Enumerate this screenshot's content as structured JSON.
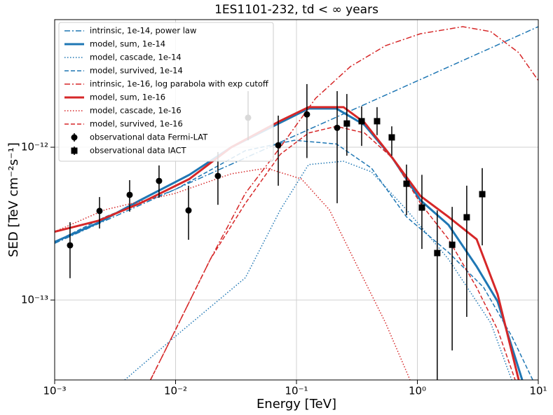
{
  "chart_data": {
    "type": "line",
    "title": "1ES1101-232, td < ∞ years",
    "xlabel": "Energy [TeV]",
    "ylabel": "SED [TeV cm⁻²s⁻¹]",
    "xscale": "log",
    "yscale": "log",
    "grid": true,
    "legend": "upper left",
    "xlim": [
      0.001,
      10
    ],
    "ylim": [
      3e-14,
      6.84e-12
    ],
    "xticks": [
      {
        "value": 0.001,
        "label": "10⁻³"
      },
      {
        "value": 0.01,
        "label": "10⁻²"
      },
      {
        "value": 0.1,
        "label": "10⁻¹"
      },
      {
        "value": 1,
        "label": "10⁰"
      },
      {
        "value": 10,
        "label": "10¹"
      }
    ],
    "yticks": [
      {
        "value": 1e-13,
        "label": "10⁻¹³"
      },
      {
        "value": 1e-12,
        "label": "10⁻¹²"
      }
    ],
    "series": [
      {
        "name": "intrinsic, 1e-14, power law",
        "type": "line",
        "color": "#1f77b4",
        "linestyle": "dashdot",
        "linewidth": 1.5,
        "x": [
          0.001,
          10
        ],
        "values": [
          2.35e-13,
          6.15e-12
        ]
      },
      {
        "name": "model, sum, 1e-14",
        "type": "line",
        "color": "#1f77b4",
        "linestyle": "solid",
        "linewidth": 3,
        "x": [
          0.001,
          0.00229,
          0.0051,
          0.013,
          0.0289,
          0.0736,
          0.126,
          0.214,
          0.365,
          0.622,
          1.06,
          1.81,
          3.09,
          4.61,
          7.36
        ],
        "values": [
          2.4e-13,
          3.2e-13,
          4.5e-13,
          6.6e-13,
          1e-12,
          1.45e-12,
          1.79e-12,
          1.79e-12,
          1.4e-12,
          8.5e-13,
          4.5e-13,
          3.1e-13,
          1.66e-13,
          9.8e-14,
          3e-14
        ]
      },
      {
        "name": "model, cascade, 1e-14",
        "type": "line",
        "color": "#1f77b4",
        "linestyle": "dotted",
        "linewidth": 1.5,
        "x": [
          0.0038,
          0.01,
          0.0194,
          0.0378,
          0.0736,
          0.126,
          0.245,
          0.417,
          0.813,
          1.81,
          4.04,
          6.03
        ],
        "values": [
          3e-14,
          5.8e-14,
          9e-14,
          1.4e-13,
          3.9e-13,
          7.7e-13,
          8.1e-13,
          6.9e-13,
          3.9e-13,
          1.85e-13,
          7.1e-14,
          3e-14
        ]
      },
      {
        "name": "model, survived, 1e-14",
        "type": "line",
        "color": "#1f77b4",
        "linestyle": "dashed",
        "linewidth": 1.5,
        "x": [
          0.001,
          0.00261,
          0.01,
          0.0378,
          0.096,
          0.214,
          0.417,
          0.813,
          1.81,
          3.53,
          6.03,
          9.0
        ],
        "values": [
          2.4e-13,
          3.5e-13,
          5.3e-13,
          9.5e-13,
          1.11e-12,
          1.05e-12,
          7.3e-13,
          3.5e-13,
          2.05e-13,
          1.21e-13,
          5.8e-14,
          3e-14
        ]
      },
      {
        "name": "intrinsic, 1e-16, log parabola with exp cutoff",
        "type": "line",
        "color": "#d62728",
        "linestyle": "dashdot",
        "linewidth": 1.5,
        "x": [
          0.0062,
          0.01,
          0.0194,
          0.0378,
          0.0736,
          0.144,
          0.279,
          0.545,
          1.06,
          2.37,
          4.04,
          6.89,
          10
        ],
        "values": [
          3e-14,
          6.4e-14,
          1.85e-13,
          5e-13,
          1e-12,
          2.09e-12,
          3.37e-12,
          4.62e-12,
          5.53e-12,
          6.15e-12,
          5.71e-12,
          4.16e-12,
          2.73e-12
        ]
      },
      {
        "name": "model, sum, 1e-16",
        "type": "line",
        "color": "#d62728",
        "linestyle": "solid",
        "linewidth": 3,
        "x": [
          0.001,
          0.00229,
          0.0051,
          0.013,
          0.0289,
          0.0736,
          0.126,
          0.245,
          0.365,
          0.622,
          1.06,
          1.81,
          3.09,
          4.61,
          6.89
        ],
        "values": [
          2.8e-13,
          3.3e-13,
          4.3e-13,
          6.2e-13,
          1e-12,
          1.49e-12,
          1.83e-12,
          1.83e-12,
          1.45e-12,
          8.5e-13,
          4.8e-13,
          3.5e-13,
          2.5e-13,
          1.09e-13,
          3e-14
        ]
      },
      {
        "name": "model, cascade, 1e-16",
        "type": "line",
        "color": "#d62728",
        "linestyle": "dotted",
        "linewidth": 1.5,
        "x": [
          0.001,
          0.00261,
          0.01,
          0.0289,
          0.0563,
          0.11,
          0.187,
          0.319,
          0.545,
          0.813,
          0.869
        ],
        "values": [
          2.8e-13,
          3.9e-13,
          5e-13,
          6.7e-13,
          7.3e-13,
          6.2e-13,
          3.9e-13,
          1.66e-13,
          7.1e-14,
          3.4e-14,
          3e-14
        ]
      },
      {
        "name": "model, survived, 1e-16",
        "type": "line",
        "color": "#d62728",
        "linestyle": "dashed",
        "linewidth": 1.5,
        "x": [
          0.0062,
          0.01,
          0.0194,
          0.0378,
          0.0736,
          0.126,
          0.214,
          0.365,
          0.622,
          1.06,
          1.81,
          3.09,
          4.61,
          6.44
        ],
        "values": [
          3e-14,
          6.4e-14,
          1.85e-13,
          4.3e-13,
          9e-13,
          1.24e-12,
          1.37e-12,
          1.24e-12,
          8.5e-13,
          4.3e-13,
          2.5e-13,
          1.21e-13,
          6.4e-14,
          3e-14
        ]
      },
      {
        "name": "observational data Fermi-LAT",
        "type": "errorbar",
        "marker": "circle",
        "color": "#000000",
        "x": [
          0.00134,
          0.00235,
          0.00417,
          0.0073,
          0.0128,
          0.0224,
          0.0398,
          0.0707,
          0.122,
          0.217
        ],
        "values": [
          2.28e-13,
          3.83e-13,
          4.88e-13,
          6.02e-13,
          3.86e-13,
          6.49e-13,
          1.56e-12,
          1.03e-12,
          1.64e-12,
          1.34e-12
        ],
        "lower": [
          1.39e-13,
          2.94e-13,
          3.79e-13,
          4.67e-13,
          2.48e-13,
          4.2e-13,
          1.11e-12,
          5.6e-13,
          8.5e-13,
          4.3e-13
        ],
        "upper": [
          3.23e-13,
          4.72e-13,
          6.09e-13,
          7.6e-13,
          5.6e-13,
          9.3e-13,
          2.33e-12,
          1.61e-12,
          2.59e-12,
          2.33e-12
        ]
      },
      {
        "name": "observational data IACT",
        "type": "errorbar",
        "marker": "square",
        "color": "#000000",
        "x": [
          0.261,
          0.346,
          0.464,
          0.614,
          0.813,
          1.09,
          1.46,
          1.94,
          2.56,
          3.44
        ],
        "values": [
          1.43e-12,
          1.48e-12,
          1.48e-12,
          1.16e-12,
          5.77e-13,
          4.03e-13,
          2.03e-13,
          2.3e-13,
          3.48e-13,
          4.93e-13
        ],
        "lower": [
          8.8e-13,
          1.02e-12,
          1.2e-12,
          8.8e-13,
          3.59e-13,
          2.16e-13,
          2.3e-14,
          4.68e-14,
          7.76e-14,
          2.28e-13
        ],
        "upper": [
          2.23e-12,
          1.85e-12,
          1.83e-12,
          1.37e-12,
          7.7e-13,
          6.6e-13,
          3.86e-13,
          4.07e-13,
          5.6e-13,
          7.3e-13
        ]
      }
    ]
  }
}
